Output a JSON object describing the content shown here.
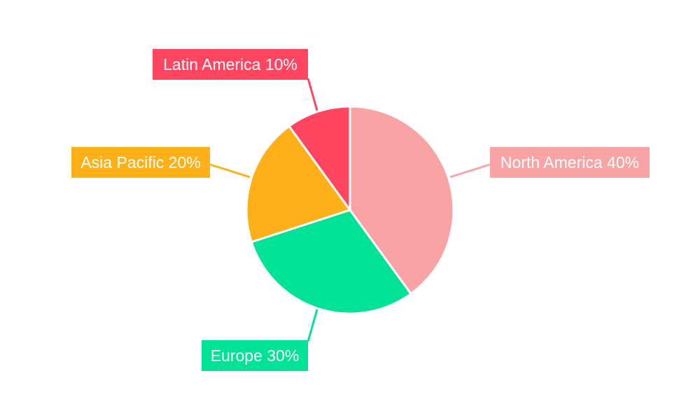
{
  "chart_data": {
    "type": "pie",
    "title": "",
    "categories": [
      "North America",
      "Europe",
      "Asia Pacific",
      "Latin America"
    ],
    "values": [
      40,
      30,
      20,
      10
    ],
    "labels": [
      "North America 40%",
      "Europe 30%",
      "Asia Pacific 20%",
      "Latin America 10%"
    ],
    "colors": [
      "#f9a3a4",
      "#00e396",
      "#feb019",
      "#ff4560"
    ],
    "start_angle": "top",
    "direction": "clockwise",
    "legend": "none"
  }
}
